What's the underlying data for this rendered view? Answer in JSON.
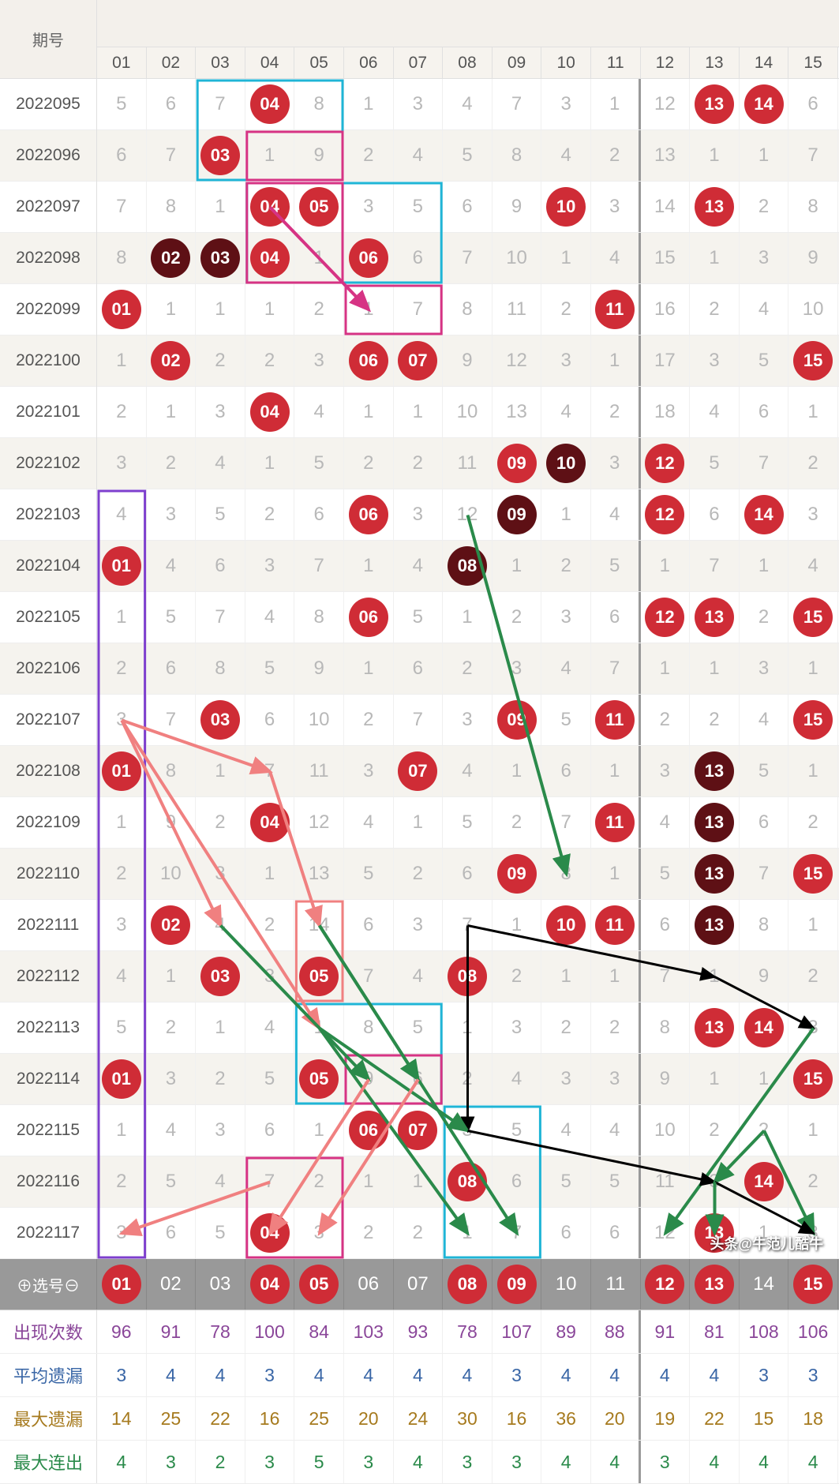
{
  "header": {
    "period_label": "期号"
  },
  "columns": [
    "01",
    "02",
    "03",
    "04",
    "05",
    "06",
    "07",
    "08",
    "09",
    "10",
    "11",
    "12",
    "13",
    "14",
    "15"
  ],
  "separator_after_col": 11,
  "rows": [
    {
      "period": "2022095",
      "cells": [
        "5",
        "6",
        "7",
        "04",
        "8",
        "1",
        "3",
        "4",
        "7",
        "3",
        "1",
        "12",
        "13",
        "14",
        "6"
      ],
      "balls": [
        4,
        13,
        14
      ],
      "dark": []
    },
    {
      "period": "2022096",
      "cells": [
        "6",
        "7",
        "03",
        "1",
        "9",
        "2",
        "4",
        "5",
        "8",
        "4",
        "2",
        "13",
        "1",
        "1",
        "7"
      ],
      "balls": [
        3
      ],
      "dark": []
    },
    {
      "period": "2022097",
      "cells": [
        "7",
        "8",
        "1",
        "04",
        "05",
        "3",
        "5",
        "6",
        "9",
        "10",
        "3",
        "14",
        "13",
        "2",
        "8"
      ],
      "balls": [
        4,
        5,
        10,
        13
      ],
      "dark": []
    },
    {
      "period": "2022098",
      "cells": [
        "8",
        "02",
        "03",
        "04",
        "1",
        "06",
        "6",
        "7",
        "10",
        "1",
        "4",
        "15",
        "1",
        "3",
        "9"
      ],
      "balls": [
        4,
        6
      ],
      "dark": [
        2,
        3
      ]
    },
    {
      "period": "2022099",
      "cells": [
        "01",
        "1",
        "1",
        "1",
        "2",
        "1",
        "7",
        "8",
        "11",
        "2",
        "11",
        "16",
        "2",
        "4",
        "10"
      ],
      "balls": [
        1,
        11
      ],
      "dark": []
    },
    {
      "period": "2022100",
      "cells": [
        "1",
        "02",
        "2",
        "2",
        "3",
        "06",
        "07",
        "9",
        "12",
        "3",
        "1",
        "17",
        "3",
        "5",
        "15"
      ],
      "balls": [
        2,
        6,
        7,
        15
      ],
      "dark": []
    },
    {
      "period": "2022101",
      "cells": [
        "2",
        "1",
        "3",
        "04",
        "4",
        "1",
        "1",
        "10",
        "13",
        "4",
        "2",
        "18",
        "4",
        "6",
        "1"
      ],
      "balls": [
        4
      ],
      "dark": []
    },
    {
      "period": "2022102",
      "cells": [
        "3",
        "2",
        "4",
        "1",
        "5",
        "2",
        "2",
        "11",
        "09",
        "10",
        "3",
        "12",
        "5",
        "7",
        "2"
      ],
      "balls": [
        9,
        12
      ],
      "dark": [
        10
      ]
    },
    {
      "period": "2022103",
      "cells": [
        "4",
        "3",
        "5",
        "2",
        "6",
        "06",
        "3",
        "12",
        "09",
        "1",
        "4",
        "12",
        "6",
        "14",
        "3"
      ],
      "balls": [
        6,
        12,
        14
      ],
      "dark": [
        9
      ]
    },
    {
      "period": "2022104",
      "cells": [
        "01",
        "4",
        "6",
        "3",
        "7",
        "1",
        "4",
        "08",
        "1",
        "2",
        "5",
        "1",
        "7",
        "1",
        "4"
      ],
      "balls": [
        1
      ],
      "dark": [
        8
      ]
    },
    {
      "period": "2022105",
      "cells": [
        "1",
        "5",
        "7",
        "4",
        "8",
        "06",
        "5",
        "1",
        "2",
        "3",
        "6",
        "12",
        "13",
        "2",
        "15"
      ],
      "balls": [
        6,
        12,
        13,
        15
      ],
      "dark": []
    },
    {
      "period": "2022106",
      "cells": [
        "2",
        "6",
        "8",
        "5",
        "9",
        "1",
        "6",
        "2",
        "3",
        "4",
        "7",
        "1",
        "1",
        "3",
        "1"
      ],
      "balls": [],
      "dark": []
    },
    {
      "period": "2022107",
      "cells": [
        "3",
        "7",
        "03",
        "6",
        "10",
        "2",
        "7",
        "3",
        "09",
        "5",
        "11",
        "2",
        "2",
        "4",
        "15"
      ],
      "balls": [
        3,
        9,
        11,
        15
      ],
      "dark": []
    },
    {
      "period": "2022108",
      "cells": [
        "01",
        "8",
        "1",
        "7",
        "11",
        "3",
        "07",
        "4",
        "1",
        "6",
        "1",
        "3",
        "13",
        "5",
        "1"
      ],
      "balls": [
        1,
        7
      ],
      "dark": [
        13
      ]
    },
    {
      "period": "2022109",
      "cells": [
        "1",
        "9",
        "2",
        "04",
        "12",
        "4",
        "1",
        "5",
        "2",
        "7",
        "11",
        "4",
        "13",
        "6",
        "2"
      ],
      "balls": [
        4,
        11
      ],
      "dark": [
        13
      ]
    },
    {
      "period": "2022110",
      "cells": [
        "2",
        "10",
        "3",
        "1",
        "13",
        "5",
        "2",
        "6",
        "09",
        "8",
        "1",
        "5",
        "13",
        "7",
        "15"
      ],
      "balls": [
        9,
        15
      ],
      "dark": [
        13
      ]
    },
    {
      "period": "2022111",
      "cells": [
        "3",
        "02",
        "4",
        "2",
        "14",
        "6",
        "3",
        "7",
        "1",
        "10",
        "11",
        "6",
        "13",
        "8",
        "1"
      ],
      "balls": [
        2,
        10,
        11
      ],
      "dark": [
        13
      ]
    },
    {
      "period": "2022112",
      "cells": [
        "4",
        "1",
        "03",
        "3",
        "05",
        "7",
        "4",
        "08",
        "2",
        "1",
        "1",
        "7",
        "1",
        "9",
        "2"
      ],
      "balls": [
        3,
        5,
        8
      ],
      "dark": []
    },
    {
      "period": "2022113",
      "cells": [
        "5",
        "2",
        "1",
        "4",
        "1",
        "8",
        "5",
        "1",
        "3",
        "2",
        "2",
        "8",
        "13",
        "14",
        "3"
      ],
      "balls": [
        13,
        14
      ],
      "dark": []
    },
    {
      "period": "2022114",
      "cells": [
        "01",
        "3",
        "2",
        "5",
        "05",
        "9",
        "6",
        "2",
        "4",
        "3",
        "3",
        "9",
        "1",
        "1",
        "15"
      ],
      "balls": [
        1,
        5,
        15
      ],
      "dark": []
    },
    {
      "period": "2022115",
      "cells": [
        "1",
        "4",
        "3",
        "6",
        "1",
        "06",
        "07",
        "3",
        "5",
        "4",
        "4",
        "10",
        "2",
        "2",
        "1"
      ],
      "balls": [
        6,
        7
      ],
      "dark": []
    },
    {
      "period": "2022116",
      "cells": [
        "2",
        "5",
        "4",
        "7",
        "2",
        "1",
        "1",
        "08",
        "6",
        "5",
        "5",
        "11",
        "3",
        "14",
        "2"
      ],
      "balls": [
        8,
        14
      ],
      "dark": []
    },
    {
      "period": "2022117",
      "cells": [
        "3",
        "6",
        "5",
        "04",
        "3",
        "2",
        "2",
        "1",
        "7",
        "6",
        "6",
        "12",
        "13",
        "1",
        "3"
      ],
      "balls": [
        4,
        13
      ],
      "dark": []
    }
  ],
  "selection": {
    "label": "⊕选号⊖",
    "cells": [
      "01",
      "02",
      "03",
      "04",
      "05",
      "06",
      "07",
      "08",
      "09",
      "10",
      "11",
      "12",
      "13",
      "14",
      "15"
    ],
    "selected": [
      1,
      4,
      5,
      8,
      9,
      12,
      13,
      15
    ]
  },
  "stats": [
    {
      "label": "出现次数",
      "color": "#8a4699",
      "cells": [
        "96",
        "91",
        "78",
        "100",
        "84",
        "103",
        "93",
        "78",
        "107",
        "89",
        "88",
        "91",
        "81",
        "108",
        "106"
      ]
    },
    {
      "label": "平均遗漏",
      "color": "#3966a6",
      "cells": [
        "3",
        "4",
        "4",
        "3",
        "4",
        "4",
        "4",
        "4",
        "3",
        "4",
        "4",
        "4",
        "4",
        "3",
        "3"
      ]
    },
    {
      "label": "最大遗漏",
      "color": "#a67a1e",
      "cells": [
        "14",
        "25",
        "22",
        "16",
        "25",
        "20",
        "24",
        "30",
        "16",
        "36",
        "20",
        "19",
        "22",
        "15",
        "18"
      ]
    },
    {
      "label": "最大连出",
      "color": "#2a8a4a",
      "cells": [
        "4",
        "3",
        "2",
        "3",
        "5",
        "3",
        "4",
        "3",
        "3",
        "4",
        "4",
        "3",
        "4",
        "4",
        "4"
      ]
    }
  ],
  "watermark": "头条@牛范儿酷牛",
  "boxes": [
    {
      "row": 1,
      "col": 3,
      "w": 3,
      "h": 2,
      "color": "#1fb5d6",
      "sw": 3
    },
    {
      "row": 2,
      "col": 4,
      "w": 2,
      "h": 1,
      "color": "#d63384",
      "sw": 3
    },
    {
      "row": 3,
      "col": 4,
      "w": 4,
      "h": 2,
      "color": "#1fb5d6",
      "sw": 3
    },
    {
      "row": 3,
      "col": 4,
      "w": 2,
      "h": 2,
      "color": "#d63384",
      "sw": 3
    },
    {
      "row": 5,
      "col": 6,
      "w": 2,
      "h": 1,
      "color": "#d63384",
      "sw": 3
    },
    {
      "row": 9,
      "col": 1,
      "w": 1,
      "h": 15,
      "color": "#7e3fce",
      "sw": 3
    },
    {
      "row": 17,
      "col": 5,
      "w": 1,
      "h": 2,
      "color": "#f08080",
      "sw": 3
    },
    {
      "row": 19,
      "col": 5,
      "w": 3,
      "h": 2,
      "color": "#1fb5d6",
      "sw": 3
    },
    {
      "row": 20,
      "col": 6,
      "w": 2,
      "h": 1,
      "color": "#d63384",
      "sw": 3
    },
    {
      "row": 21,
      "col": 8,
      "w": 2,
      "h": 3,
      "color": "#1fb5d6",
      "sw": 3
    },
    {
      "row": 22,
      "col": 4,
      "w": 2,
      "h": 2,
      "color": "#d63384",
      "sw": 3
    }
  ],
  "arrows": [
    {
      "r1": 3,
      "c1": 4,
      "r2": 5,
      "c2": 6,
      "color": "#d63384",
      "sw": 4
    },
    {
      "r1": 9,
      "c1": 8,
      "r2": 16,
      "c2": 10,
      "color": "#2a8a4a",
      "sw": 4
    },
    {
      "r1": 13,
      "c1": 1,
      "r2": 14,
      "c2": 4,
      "color": "#f08080",
      "sw": 4
    },
    {
      "r1": 13,
      "c1": 1,
      "r2": 17,
      "c2": 3,
      "color": "#f08080",
      "sw": 4
    },
    {
      "r1": 13,
      "c1": 1,
      "r2": 19,
      "c2": 5,
      "color": "#f08080",
      "sw": 4
    },
    {
      "r1": 14,
      "c1": 4,
      "r2": 17,
      "c2": 5,
      "color": "#f08080",
      "sw": 4
    },
    {
      "r1": 17,
      "c1": 3,
      "r2": 20,
      "c2": 6,
      "color": "#2a8a4a",
      "sw": 4
    },
    {
      "r1": 17,
      "c1": 5,
      "r2": 20,
      "c2": 7,
      "color": "#2a8a4a",
      "sw": 4
    },
    {
      "r1": 17,
      "c1": 5,
      "r2": 23,
      "c2": 9,
      "color": "#2a8a4a",
      "sw": 4
    },
    {
      "r1": 17,
      "c1": 8,
      "r2": 18,
      "c2": 13,
      "color": "#000",
      "sw": 3
    },
    {
      "r1": 17,
      "c1": 8,
      "r2": 21,
      "c2": 8,
      "color": "#000",
      "sw": 3
    },
    {
      "r1": 18,
      "c1": 13,
      "r2": 19,
      "c2": 15,
      "color": "#000",
      "sw": 3
    },
    {
      "r1": 19,
      "c1": 5,
      "r2": 21,
      "c2": 8,
      "color": "#2a8a4a",
      "sw": 4
    },
    {
      "r1": 19,
      "c1": 5,
      "r2": 23,
      "c2": 8,
      "color": "#2a8a4a",
      "sw": 4
    },
    {
      "r1": 19,
      "c1": 15,
      "r2": 23,
      "c2": 12,
      "color": "#2a8a4a",
      "sw": 4
    },
    {
      "r1": 20,
      "c1": 6,
      "r2": 23,
      "c2": 4,
      "color": "#f08080",
      "sw": 4
    },
    {
      "r1": 20,
      "c1": 7,
      "r2": 23,
      "c2": 5,
      "color": "#f08080",
      "sw": 4
    },
    {
      "r1": 21,
      "c1": 8,
      "r2": 22,
      "c2": 13,
      "color": "#000",
      "sw": 3
    },
    {
      "r1": 21,
      "c1": 14,
      "r2": 22,
      "c2": 13,
      "color": "#2a8a4a",
      "sw": 4
    },
    {
      "r1": 21,
      "c1": 14,
      "r2": 23,
      "c2": 15,
      "color": "#2a8a4a",
      "sw": 4
    },
    {
      "r1": 22,
      "c1": 4,
      "r2": 23,
      "c2": 1,
      "color": "#f08080",
      "sw": 4
    },
    {
      "r1": 22,
      "c1": 13,
      "r2": 23,
      "c2": 15,
      "color": "#000",
      "sw": 3
    },
    {
      "r1": 22,
      "c1": 13,
      "r2": 23,
      "c2": 13,
      "color": "#2a8a4a",
      "sw": 4
    }
  ],
  "colors": {
    "ball_red": "#cf2c36",
    "ball_dark": "#5e1015",
    "header_bg": "#f3f0eb",
    "alt_bg": "#f5f3ee"
  }
}
